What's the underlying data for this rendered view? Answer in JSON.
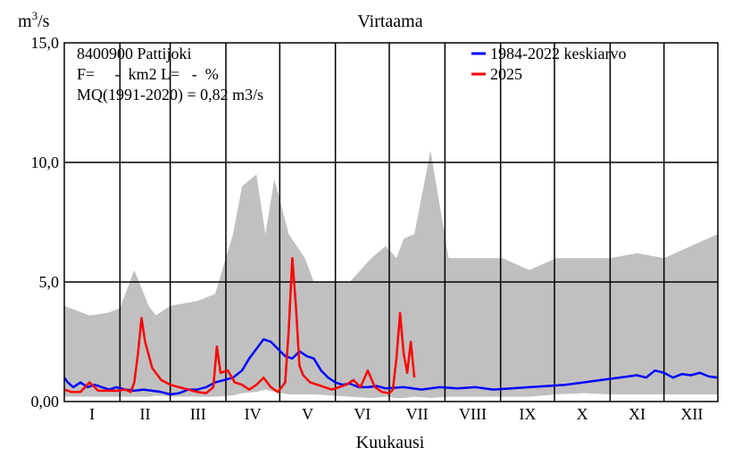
{
  "chart_data": {
    "type": "line",
    "title": "Virtaama",
    "ylabel": "m3/s",
    "ylabel_base": "m",
    "ylabel_sup": "3",
    "ylabel_rest": "/s",
    "xlabel": "Kuukausi",
    "ylim": [
      0,
      15
    ],
    "yticks": [
      "0,00",
      "5,0",
      "10,0",
      "15,0"
    ],
    "ytick_values": [
      0,
      5,
      10,
      15
    ],
    "categories": [
      "I",
      "II",
      "III",
      "IV",
      "V",
      "VI",
      "VII",
      "VIII",
      "IX",
      "X",
      "XI",
      "XII"
    ],
    "grid": true,
    "legend_position": "top-right",
    "station_text": [
      "8400900 Pattijoki",
      "F=     -  km2 L=   -  %",
      "MQ(1991-2020) = 0,82 m3/s"
    ],
    "range_band": {
      "color": "#c0c0c0",
      "x": [
        1,
        15,
        25,
        32,
        40,
        48,
        52,
        60,
        75,
        85,
        95,
        100,
        108,
        113,
        118,
        126,
        135,
        140,
        150,
        160,
        172,
        180,
        186,
        190,
        196,
        205,
        215,
        230,
        245,
        260,
        275,
        290,
        305,
        320,
        335,
        350,
        365
      ],
      "min": [
        0.2,
        0.2,
        0.2,
        0.2,
        0.2,
        0.2,
        0.25,
        0.2,
        0.2,
        0.2,
        0.25,
        0.35,
        0.4,
        0.5,
        0.4,
        0.3,
        0.3,
        0.3,
        0.25,
        0.2,
        0.15,
        0.2,
        0.15,
        0.15,
        0.2,
        0.15,
        0.2,
        0.2,
        0.2,
        0.2,
        0.3,
        0.35,
        0.3,
        0.3,
        0.3,
        0.3,
        0.3
      ],
      "max": [
        4.0,
        3.6,
        3.7,
        3.9,
        5.5,
        4.0,
        3.6,
        4.0,
        4.2,
        4.5,
        7.0,
        9.0,
        9.5,
        7.0,
        9.3,
        7.0,
        6.0,
        5.0,
        5.0,
        5.0,
        6.0,
        6.5,
        6.0,
        6.8,
        7.0,
        10.5,
        6.0,
        6.0,
        6.0,
        5.5,
        6.0,
        6.0,
        6.0,
        6.2,
        6.0,
        6.5,
        7.0
      ]
    },
    "series": [
      {
        "name": "1984-2022 keskiarvo",
        "color": "#0000ff",
        "x": [
          1,
          3,
          6,
          10,
          14,
          18,
          22,
          26,
          30,
          35,
          40,
          45,
          50,
          55,
          60,
          65,
          70,
          75,
          80,
          85,
          90,
          95,
          100,
          104,
          108,
          112,
          116,
          120,
          124,
          128,
          132,
          136,
          140,
          144,
          148,
          152,
          156,
          160,
          165,
          170,
          175,
          180,
          190,
          200,
          210,
          220,
          230,
          240,
          250,
          260,
          270,
          280,
          290,
          300,
          310,
          320,
          325,
          330,
          335,
          340,
          345,
          350,
          355,
          360,
          365
        ],
        "y": [
          1.0,
          0.8,
          0.6,
          0.8,
          0.6,
          0.7,
          0.6,
          0.5,
          0.6,
          0.5,
          0.45,
          0.5,
          0.45,
          0.4,
          0.3,
          0.35,
          0.5,
          0.5,
          0.6,
          0.8,
          0.9,
          1.0,
          1.3,
          1.8,
          2.2,
          2.6,
          2.5,
          2.2,
          1.9,
          1.8,
          2.1,
          1.9,
          1.8,
          1.3,
          1.0,
          0.8,
          0.7,
          0.75,
          0.6,
          0.6,
          0.65,
          0.55,
          0.6,
          0.5,
          0.6,
          0.55,
          0.6,
          0.5,
          0.55,
          0.6,
          0.65,
          0.7,
          0.8,
          0.9,
          1.0,
          1.1,
          1.0,
          1.3,
          1.2,
          1.0,
          1.15,
          1.1,
          1.2,
          1.05,
          1.0
        ]
      },
      {
        "name": "2025",
        "color": "#ff0000",
        "x": [
          1,
          5,
          10,
          15,
          20,
          25,
          30,
          35,
          38,
          40,
          42,
          44,
          46,
          50,
          55,
          60,
          65,
          70,
          75,
          80,
          84,
          86,
          88,
          92,
          96,
          100,
          104,
          108,
          112,
          116,
          120,
          124,
          126,
          128,
          130,
          132,
          134,
          138,
          142,
          146,
          150,
          154,
          158,
          162,
          166,
          170,
          174,
          178,
          182,
          184,
          186,
          188,
          190,
          192,
          194,
          196
        ],
        "y": [
          0.5,
          0.4,
          0.4,
          0.8,
          0.45,
          0.45,
          0.45,
          0.5,
          0.4,
          0.8,
          2.0,
          3.5,
          2.5,
          1.4,
          0.9,
          0.7,
          0.6,
          0.5,
          0.4,
          0.35,
          0.6,
          2.3,
          1.2,
          1.3,
          0.8,
          0.7,
          0.5,
          0.7,
          1.0,
          0.6,
          0.4,
          0.8,
          3.0,
          6.0,
          4.0,
          1.5,
          1.1,
          0.8,
          0.7,
          0.6,
          0.5,
          0.6,
          0.7,
          0.9,
          0.6,
          1.3,
          0.6,
          0.4,
          0.35,
          0.5,
          1.8,
          3.7,
          2.0,
          1.2,
          2.5,
          1.0
        ]
      }
    ]
  }
}
